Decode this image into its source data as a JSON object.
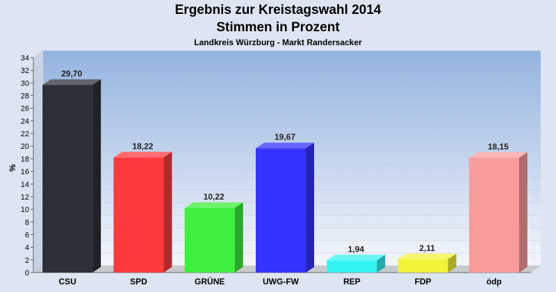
{
  "chart_data": {
    "type": "bar",
    "title": "Ergebnis zur Kreistagswahl 2014",
    "subtitle": "Stimmen in Prozent",
    "caption": "Landkreis Würzburg - Markt Randersacker",
    "ylabel": "%",
    "xlabel": "",
    "ylim": [
      0,
      34
    ],
    "ytick_step": 2,
    "grid": true,
    "categories": [
      "CSU",
      "SPD",
      "GRÜNE",
      "UWG-FW",
      "REP",
      "FDP",
      "ödp"
    ],
    "values": [
      29.7,
      18.22,
      10.22,
      19.67,
      1.94,
      2.11,
      18.15
    ],
    "value_labels": [
      "29,70",
      "18,22",
      "10,22",
      "19,67",
      "1,94",
      "2,11",
      "18,15"
    ],
    "colors": [
      "#2e3038",
      "#fe3a3d",
      "#3ef03b",
      "#3533ff",
      "#35f3f3",
      "#f3f33a",
      "#fb9c9c"
    ]
  }
}
